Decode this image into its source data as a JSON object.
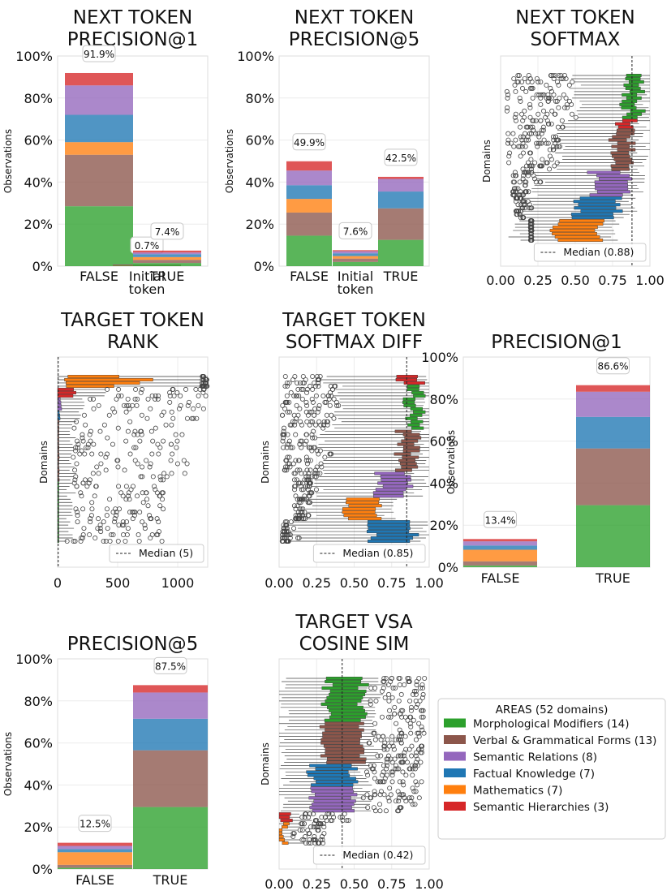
{
  "colors": {
    "Morphological Modifiers": "#2ca02c",
    "Verbal & Grammatical Forms": "#8c564b",
    "Semantic Relations": "#9467bd",
    "Factual Knowledge": "#1f77b4",
    "Mathematics": "#ff7f0e",
    "Semantic Hierarchies": "#d62728"
  },
  "legend": {
    "title": "AREAS (52 domains)",
    "items": [
      {
        "label": "Morphological Modifiers (14)",
        "area": "Morphological Modifiers"
      },
      {
        "label": "Verbal & Grammatical Forms (13)",
        "area": "Verbal & Grammatical Forms"
      },
      {
        "label": "Semantic Relations (8)",
        "area": "Semantic Relations"
      },
      {
        "label": "Factual Knowledge (7)",
        "area": "Factual Knowledge"
      },
      {
        "label": "Mathematics (7)",
        "area": "Mathematics"
      },
      {
        "label": "Semantic Hierarchies (3)",
        "area": "Semantic Hierarchies"
      }
    ]
  },
  "stack_order": [
    "Morphological Modifiers",
    "Verbal & Grammatical Forms",
    "Mathematics",
    "Factual Knowledge",
    "Semantic Relations",
    "Semantic Hierarchies"
  ],
  "chart_data": [
    {
      "id": "p1",
      "type": "bar",
      "stacked": true,
      "title": [
        "NEXT TOKEN",
        "PRECISION@1"
      ],
      "ylabel": "Observations",
      "ylim": [
        0,
        100
      ],
      "yticks": [
        "0%",
        "20%",
        "40%",
        "60%",
        "80%",
        "100%"
      ],
      "categories": [
        [
          "FALSE"
        ],
        [
          "Initial",
          "token"
        ],
        [
          "TRUE"
        ]
      ],
      "labels": [
        "91.9%",
        "0.7%",
        "7.4%"
      ],
      "stacks": [
        [
          28.5,
          24.5,
          6.0,
          13.0,
          14.0,
          5.9
        ],
        [
          0.2,
          0.2,
          0.1,
          0.1,
          0.05,
          0.05
        ],
        [
          1.5,
          1.5,
          1.3,
          1.4,
          0.8,
          0.9
        ]
      ]
    },
    {
      "id": "p2",
      "type": "bar",
      "stacked": true,
      "title": [
        "NEXT TOKEN",
        "PRECISION@5"
      ],
      "ylabel": "Observations",
      "ylim": [
        0,
        100
      ],
      "yticks": [
        "0%",
        "20%",
        "40%",
        "60%",
        "80%",
        "100%"
      ],
      "categories": [
        [
          "FALSE"
        ],
        [
          "Initial",
          "token"
        ],
        [
          "TRUE"
        ]
      ],
      "labels": [
        "49.9%",
        "7.6%",
        "42.5%"
      ],
      "stacks": [
        [
          14.5,
          11.0,
          6.5,
          6.5,
          7.0,
          4.4
        ],
        [
          2.0,
          1.6,
          1.2,
          1.3,
          1.0,
          0.5
        ],
        [
          12.5,
          15.0,
          0.0,
          8.0,
          6.0,
          1.0
        ]
      ]
    },
    {
      "id": "p3",
      "type": "boxplot",
      "orientation": "horizontal",
      "title": [
        "NEXT TOKEN",
        "SOFTMAX"
      ],
      "ylabel": "Domains",
      "xlim": [
        0,
        1
      ],
      "xticks": [
        "0.00",
        "0.25",
        "0.50",
        "0.75",
        "1.00"
      ],
      "median": 0.88,
      "median_label": "Median (0.88)",
      "areas": [
        {
          "area": "Morphological Modifiers",
          "count": 14,
          "q1": 0.83,
          "q3": 0.93,
          "wmin": 0.5,
          "fmin": 0.04
        },
        {
          "area": "Semantic Hierarchies",
          "count": 3,
          "q1": 0.8,
          "q3": 0.9,
          "wmin": 0.45,
          "fmin": 0.1
        },
        {
          "area": "Verbal & Grammatical Forms",
          "count": 13,
          "q1": 0.76,
          "q3": 0.88,
          "wmin": 0.4,
          "fmin": 0.04
        },
        {
          "area": "Semantic Relations",
          "count": 8,
          "q1": 0.62,
          "q3": 0.84,
          "wmin": 0.25,
          "fmin": 0.08
        },
        {
          "area": "Factual Knowledge",
          "count": 7,
          "q1": 0.5,
          "q3": 0.78,
          "wmin": 0.18,
          "fmin": 0.1
        },
        {
          "area": "Mathematics",
          "count": 7,
          "q1": 0.36,
          "q3": 0.66,
          "wmin": 0.1,
          "fmin": 0.2
        }
      ]
    },
    {
      "id": "p4",
      "type": "boxplot",
      "orientation": "horizontal",
      "title": [
        "TARGET TOKEN",
        "RANK"
      ],
      "ylabel": "Domains",
      "xlim": [
        0,
        1250
      ],
      "xticks": [
        "0",
        "500",
        "1000"
      ],
      "xtick_values": [
        0,
        500,
        1000
      ],
      "median": 5,
      "median_label": "Median (5)"
    },
    {
      "id": "p5",
      "type": "boxplot",
      "orientation": "horizontal",
      "title": [
        "TARGET TOKEN",
        "SOFTMAX DIFF"
      ],
      "ylabel": "Domains",
      "xlim": [
        0,
        1
      ],
      "xticks": [
        "0.00",
        "0.25",
        "0.50",
        "0.75",
        "1.00"
      ],
      "median": 0.85,
      "median_label": "Median (0.85)",
      "areas": [
        {
          "area": "Semantic Hierarchies",
          "count": 3,
          "q1": 0.8,
          "q3": 0.94,
          "wmin": 0.3,
          "fmin": 0.02
        },
        {
          "area": "Morphological Modifiers",
          "count": 14,
          "q1": 0.86,
          "q3": 0.94,
          "wmin": 0.4,
          "fmin": 0.02
        },
        {
          "area": "Verbal & Grammatical Forms",
          "count": 13,
          "q1": 0.8,
          "q3": 0.91,
          "wmin": 0.3,
          "fmin": 0.02
        },
        {
          "area": "Semantic Relations",
          "count": 8,
          "q1": 0.66,
          "q3": 0.86,
          "wmin": 0.25,
          "fmin": 0.1
        },
        {
          "area": "Mathematics",
          "count": 7,
          "q1": 0.44,
          "q3": 0.66,
          "wmin": 0.2,
          "fmin": 0.1
        },
        {
          "area": "Factual Knowledge",
          "count": 7,
          "q1": 0.62,
          "q3": 0.9,
          "wmin": 0.1,
          "fmin": 0.02
        }
      ]
    },
    {
      "id": "p6",
      "type": "bar",
      "stacked": true,
      "title": [
        "PRECISION@1"
      ],
      "ylabel": "Observations",
      "ylim": [
        0,
        100
      ],
      "yticks": [
        "0%",
        "20%",
        "40%",
        "60%",
        "80%",
        "100%"
      ],
      "categories": [
        [
          "FALSE"
        ],
        [
          "TRUE"
        ]
      ],
      "labels": [
        "13.4%",
        "86.6%"
      ],
      "stacks": [
        [
          0.8,
          2.0,
          5.5,
          2.0,
          2.0,
          1.1
        ],
        [
          29.5,
          27.0,
          0.0,
          15.0,
          12.0,
          3.1
        ]
      ]
    },
    {
      "id": "p7",
      "type": "bar",
      "stacked": true,
      "title": [
        "PRECISION@5"
      ],
      "ylabel": "Observations",
      "ylim": [
        0,
        100
      ],
      "yticks": [
        "0%",
        "20%",
        "40%",
        "60%",
        "80%",
        "100%"
      ],
      "categories": [
        [
          "FALSE"
        ],
        [
          "TRUE"
        ]
      ],
      "labels": [
        "12.5%",
        "87.5%"
      ],
      "stacks": [
        [
          0.6,
          1.4,
          6.0,
          1.5,
          1.5,
          1.5
        ],
        [
          29.5,
          27.0,
          0.0,
          15.0,
          12.5,
          3.5
        ]
      ]
    },
    {
      "id": "p8",
      "type": "boxplot",
      "orientation": "horizontal",
      "title": [
        "TARGET VSA",
        "COSINE SIM"
      ],
      "ylabel": "Domains",
      "xlim": [
        0,
        1
      ],
      "xticks": [
        "0.00",
        "0.25",
        "0.50",
        "0.75",
        "1.00"
      ],
      "median": 0.42,
      "median_label": "Median (0.42)",
      "areas": [
        {
          "area": "Morphological Modifiers",
          "count": 14,
          "q1": 0.32,
          "q3": 0.56,
          "wmin": 0.02,
          "fmax": 0.97
        },
        {
          "area": "Verbal & Grammatical Forms",
          "count": 13,
          "q1": 0.3,
          "q3": 0.56,
          "wmin": 0.02,
          "fmax": 0.97
        },
        {
          "area": "Factual Knowledge",
          "count": 7,
          "q1": 0.22,
          "q3": 0.5,
          "wmin": 0.02,
          "fmax": 0.95
        },
        {
          "area": "Semantic Relations",
          "count": 8,
          "q1": 0.2,
          "q3": 0.48,
          "wmin": 0.02,
          "fmax": 0.95
        },
        {
          "area": "Semantic Hierarchies",
          "count": 3,
          "q1": 0.02,
          "q3": 0.1,
          "wmin": 0.0,
          "fmax": 0.5
        },
        {
          "area": "Mathematics",
          "count": 7,
          "q1": 0.0,
          "q3": 0.04,
          "wmin": 0.0,
          "fmax": 0.3
        }
      ]
    }
  ]
}
